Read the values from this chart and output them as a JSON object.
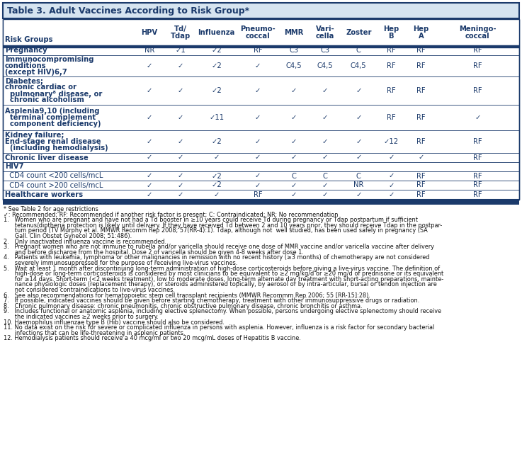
{
  "title": "Table 3. Adult Vaccines According to Risk Group*",
  "dark_blue": "#1b3a6b",
  "light_blue": "#d6e4f0",
  "text_blue": "#1b3a6b",
  "border_blue": "#1b3a6b",
  "check": "✓",
  "columns": [
    "Risk Groups",
    "HPV",
    "Td/\nTdap",
    "Influenza",
    "Pneumo-\ncoccal",
    "MMR",
    "Vari-\ncella",
    "Zoster",
    "Hep\nB",
    "Hep\nA",
    "Meningo-\ncoccal"
  ],
  "rows": [
    {
      "label": [
        "Pregnancy"
      ],
      "bold_label": true,
      "values": [
        "NR",
        "✓1",
        "✓2",
        "RF",
        "C3",
        "C3",
        "C",
        "RF",
        "RF",
        "RF"
      ],
      "value_styles": [
        "",
        "check_sup",
        "check_sup",
        "",
        "C_sup",
        "C_sup",
        "",
        "",
        "",
        ""
      ]
    },
    {
      "label": [
        "Immunocompromising",
        "conditions",
        "(except HIV)6,7"
      ],
      "bold_label": true,
      "values": [
        "✓",
        "✓",
        "✓2",
        "✓",
        "C4,5",
        "C4,5",
        "C4,5",
        "RF",
        "RF",
        "RF"
      ],
      "value_styles": [
        "check",
        "check",
        "check_sup",
        "check",
        "C_sup",
        "C_sup",
        "C_sup",
        "",
        "",
        ""
      ]
    },
    {
      "label": [
        "Diabetes;",
        "chronic cardiac or",
        "  pulmonary⁸ disease, or",
        "  chronic alcoholism"
      ],
      "bold_label": true,
      "values": [
        "✓",
        "✓",
        "✓2",
        "✓",
        "✓",
        "✓",
        "✓",
        "RF",
        "RF",
        "RF"
      ],
      "value_styles": [
        "check",
        "check",
        "check_sup",
        "check",
        "check",
        "check",
        "check",
        "",
        "",
        ""
      ]
    },
    {
      "label": [
        "Asplenia9,10 (including",
        "  terminal complement",
        "  component deficiency)"
      ],
      "bold_label": true,
      "values": [
        "✓",
        "✓",
        "✓11",
        "✓",
        "✓",
        "✓",
        "✓",
        "RF",
        "RF",
        "✓"
      ],
      "value_styles": [
        "check",
        "check",
        "check_sup",
        "check",
        "check",
        "check",
        "check",
        "",
        "",
        "check"
      ]
    },
    {
      "label": [
        "Kidney failure;",
        "End-stage renal disease",
        "  (including hemodialysis)"
      ],
      "bold_label": true,
      "values": [
        "✓",
        "✓",
        "✓2",
        "✓",
        "✓",
        "✓",
        "✓",
        "✓12",
        "RF",
        "RF"
      ],
      "value_styles": [
        "check",
        "check",
        "check_sup",
        "check",
        "check",
        "check",
        "check",
        "check_sup",
        "",
        ""
      ]
    },
    {
      "label": [
        "Chronic liver disease"
      ],
      "bold_label": true,
      "values": [
        "✓",
        "✓",
        "✓",
        "✓",
        "✓",
        "✓",
        "✓",
        "✓",
        "✓",
        "RF"
      ],
      "value_styles": [
        "check",
        "check",
        "check",
        "check",
        "check",
        "check",
        "check",
        "check",
        "check",
        ""
      ]
    },
    {
      "label": [
        "HIV7"
      ],
      "bold_label": true,
      "values": [
        "",
        "",
        "",
        "",
        "",
        "",
        "",
        "",
        "",
        ""
      ],
      "header_only": true
    },
    {
      "label": [
        "  CD4 count <200 cells/mcL"
      ],
      "bold_label": false,
      "values": [
        "✓",
        "✓",
        "✓2",
        "✓",
        "C",
        "C",
        "C",
        "✓",
        "RF",
        "RF"
      ],
      "value_styles": [
        "check",
        "check",
        "check_sup",
        "check",
        "",
        "",
        "",
        "check",
        "",
        ""
      ]
    },
    {
      "label": [
        "  CD4 count >200 cells/mcL"
      ],
      "bold_label": false,
      "values": [
        "✓",
        "✓",
        "✓2",
        "✓",
        "✓",
        "✓",
        "NR",
        "✓",
        "RF",
        "RF"
      ],
      "value_styles": [
        "check",
        "check",
        "check_sup",
        "check",
        "check",
        "check",
        "",
        "check",
        "",
        ""
      ]
    },
    {
      "label": [
        "Healthcare workers"
      ],
      "bold_label": true,
      "is_last": true,
      "values": [
        "✓",
        "✓",
        "✓",
        "RF",
        "✓",
        "✓",
        "✓",
        "✓",
        "RF",
        "RF"
      ],
      "value_styles": [
        "check",
        "check",
        "check",
        "",
        "check",
        "check",
        "check",
        "check",
        "",
        ""
      ]
    }
  ],
  "footnote_lines": [
    {
      "text": "* See Table 2 for age restrictions",
      "indent": 0
    },
    {
      "text": "✓: Recommended; RF: Recommended if another risk factor is present; C: Contraindicated; NR: No recommendation",
      "indent": 0
    },
    {
      "text": "1.   Women who are pregnant and have not had a Td booster in ≥10 years could receive Td during pregnancy or Tdap postpartum if sufficient",
      "indent": 0
    },
    {
      "text": "      tetanus/diptheria protection is likely until delivery. If they have received Td between 2 and 10 years prior, they should receive Tdap in the postpar-",
      "indent": 0
    },
    {
      "text": "      tum period (TV Murphy et al. MMWR Recomm Rep 2008; 57(RR-4):1). Tdap, although not  well studied, has been used safely in pregnancy (SA",
      "indent": 0
    },
    {
      "text": "      Gall. Clin Obstet Gynecol 2008; 51:486).",
      "indent": 0
    },
    {
      "text": "2.   Only inactivated influenza vaccine is recommended.",
      "indent": 0
    },
    {
      "text": "3.   Pregnant women who are not immune to rubella and/or varicella should receive one dose of MMR vaccine and/or varicella vaccine after delivery",
      "indent": 0
    },
    {
      "text": "      and before discharge from the hospital. Dose 2 of varicella should be given 4-8 weeks after dose 1.",
      "indent": 0
    },
    {
      "text": "4.   Patients with leukemia, lymphoma or other malignancies in remission with no recent history (≥3 months) of chemotherapy are not considered",
      "indent": 0
    },
    {
      "text": "      severely immunosuppressed for the purpose of receiving live-virus vaccines.",
      "indent": 0
    },
    {
      "text": "5.   Wait at least 1 month after discontinuing long-term administration of high-dose corticosteroids before giving a live-virus vaccine. The definition of",
      "indent": 0
    },
    {
      "text": "      high-dose or long-term corticosteroids is considered by most clinicians to be equivalent to ≥2 mg/kg/d or ≥20 mg/d of prednisone or its equivalent",
      "indent": 0
    },
    {
      "text": "      for ≥14 days. Short-term (<2 weeks treatment), low to moderate doses, long-term alternate day treatment with short-acting preparations, mainte-",
      "indent": 0
    },
    {
      "text": "      nance physiologic doses (replacement therapy), or steroids administered topically, by aerosol or by intra-articular, bursal or tendon injection are",
      "indent": 0
    },
    {
      "text": "      not considered contraindications to live-virus vaccines.",
      "indent": 0
    },
    {
      "text": "6.   See also recommendations for hematopoietic stem cell transplant recipients (MMWR Recommm Rep 2006; 55 [RR-15]:28).",
      "indent": 0
    },
    {
      "text": "7.   If possible, indicated vaccines should be given before starting chemotherapy, treatment with other immunosuppressive drugs or radiation.",
      "indent": 0
    },
    {
      "text": "8.   Chronic pulmonary disease: chronic pneumonitis, chronic obstructive pulmonary disease, chronic bronchitis or asthma.",
      "indent": 0
    },
    {
      "text": "9.   Includes functional or anatomic asplenia, including elective splenectomy. When possible, persons undergoing elective splenectomy should receive",
      "indent": 0
    },
    {
      "text": "      the indicated vaccines ≥2 weeks prior to surgery.",
      "indent": 0
    },
    {
      "text": "10. Haemophilus influenzae type B (Hib) vaccine should also be considered.",
      "indent": 0
    },
    {
      "text": "11. No data exist on the risk for severe or complicated influenza in persons with asplenia. However, influenza is a risk factor for secondary bacterial",
      "indent": 0
    },
    {
      "text": "      infections that can be life-threatening in asplenic patients.",
      "indent": 0
    },
    {
      "text": "12. Hemodialysis patients should receive a 40 mcg/ml or two 20 mcg/mL doses of Hepatitis B vaccine.",
      "indent": 0
    }
  ]
}
